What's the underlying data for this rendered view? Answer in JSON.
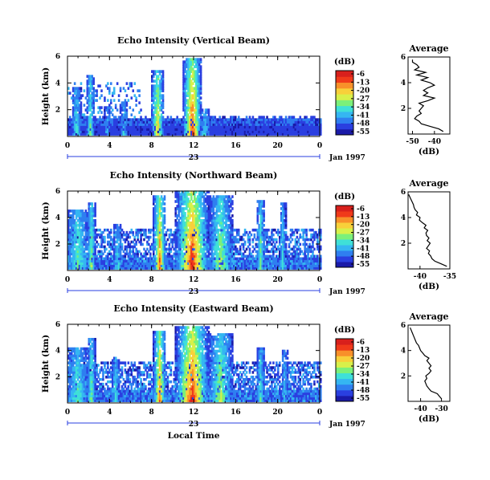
{
  "figure": {
    "x_axis_label": "Local Time",
    "date_label": "Jan 1997",
    "day_label": "23",
    "colorbar_unit": "(dB)",
    "avg_xlabel": "(dB)",
    "avg_title": "Average",
    "y_label": "Height (km)"
  },
  "colors": {
    "scale": [
      "#1a1aa8",
      "#2a3fe0",
      "#2f7ff0",
      "#35b6f2",
      "#3fe0d8",
      "#7bf07a",
      "#d8f04a",
      "#f8d03a",
      "#f8902a",
      "#f03a1a",
      "#d8201c"
    ]
  },
  "chart_data": [
    {
      "type": "heatmap",
      "title": "Echo Intensity (Vertical Beam)",
      "ylabel": "Height (km)",
      "xlabel": "",
      "x_ticks": [
        "0",
        "4",
        "8",
        "12",
        "16",
        "20",
        "0"
      ],
      "y_ticks": [
        "2",
        "4",
        "6"
      ],
      "xlim": [
        0,
        24
      ],
      "ylim": [
        0,
        6
      ],
      "colorbar_ticks": [
        "-6",
        "-13",
        "-20",
        "-27",
        "-34",
        "-41",
        "-48",
        "-55"
      ],
      "vmin": -55,
      "vmax": -6,
      "base_height_km": 1.2,
      "background_db": -48,
      "events": [
        {
          "t": 0.8,
          "w": 0.5,
          "top": 3.6,
          "peak": -34
        },
        {
          "t": 2.1,
          "w": 0.4,
          "top": 4.6,
          "peak": -30
        },
        {
          "t": 3.7,
          "w": 0.3,
          "top": 2.2,
          "peak": -38
        },
        {
          "t": 5.3,
          "w": 0.4,
          "top": 2.6,
          "peak": -36
        },
        {
          "t": 8.5,
          "w": 0.6,
          "top": 4.8,
          "peak": -20
        },
        {
          "t": 11.8,
          "w": 0.9,
          "top": 5.7,
          "peak": -10
        },
        {
          "t": 13.0,
          "w": 0.5,
          "top": 2.0,
          "peak": -34
        }
      ],
      "avg": {
        "title": "Average",
        "xlabel": "(dB)",
        "x_ticks": [
          "-50",
          "-40"
        ],
        "xlim": [
          -52,
          -33
        ],
        "ylim": [
          0,
          6
        ],
        "y_ticks": [
          "2",
          "4",
          "6"
        ],
        "heights": [
          0.2,
          0.4,
          0.6,
          0.8,
          1.0,
          1.2,
          1.4,
          1.6,
          1.8,
          2.0,
          2.2,
          2.4,
          2.6,
          2.8,
          3.0,
          3.2,
          3.4,
          3.6,
          3.8,
          4.0,
          4.2,
          4.4,
          4.6,
          4.8,
          5.0,
          5.2,
          5.4,
          5.6,
          5.8
        ],
        "values": [
          -36,
          -38,
          -42,
          -46,
          -47,
          -49,
          -48,
          -46,
          -47,
          -46,
          -45,
          -47,
          -43,
          -40,
          -45,
          -43,
          -45,
          -43,
          -40,
          -42,
          -46,
          -43,
          -48,
          -44,
          -49,
          -47,
          -48,
          -50,
          -50
        ]
      }
    },
    {
      "type": "heatmap",
      "title": "Echo Intensity (Northward Beam)",
      "ylabel": "Height (km)",
      "xlabel": "",
      "x_ticks": [
        "0",
        "4",
        "8",
        "12",
        "16",
        "20",
        "0"
      ],
      "y_ticks": [
        "2",
        "4",
        "6"
      ],
      "xlim": [
        0,
        24
      ],
      "ylim": [
        0,
        6
      ],
      "colorbar_ticks": [
        "-6",
        "-13",
        "-20",
        "-27",
        "-34",
        "-41",
        "-48",
        "-55"
      ],
      "vmin": -55,
      "vmax": -6,
      "base_height_km": 0.8,
      "background_db": -46,
      "events": [
        {
          "t": 0.9,
          "w": 1.2,
          "top": 4.6,
          "peak": -30
        },
        {
          "t": 2.2,
          "w": 0.4,
          "top": 5.0,
          "peak": -26
        },
        {
          "t": 4.7,
          "w": 0.4,
          "top": 3.4,
          "peak": -34
        },
        {
          "t": 8.7,
          "w": 0.6,
          "top": 5.6,
          "peak": -14
        },
        {
          "t": 11.8,
          "w": 1.6,
          "top": 5.9,
          "peak": -8
        },
        {
          "t": 14.5,
          "w": 1.2,
          "top": 5.6,
          "peak": -26
        },
        {
          "t": 18.3,
          "w": 0.4,
          "top": 5.2,
          "peak": -30
        },
        {
          "t": 20.4,
          "w": 0.3,
          "top": 5.0,
          "peak": -34
        }
      ],
      "avg": {
        "title": "Average",
        "xlabel": "(dB)",
        "x_ticks": [
          "-40",
          "-35"
        ],
        "xlim": [
          -42,
          -35
        ],
        "ylim": [
          0,
          6
        ],
        "y_ticks": [
          "2",
          "4",
          "6"
        ],
        "heights": [
          0.2,
          0.4,
          0.6,
          0.8,
          1.0,
          1.2,
          1.4,
          1.6,
          1.8,
          2.0,
          2.2,
          2.4,
          2.6,
          2.8,
          3.0,
          3.2,
          3.4,
          3.6,
          3.8,
          4.0,
          4.2,
          4.4,
          4.6,
          4.8,
          5.0,
          5.2,
          5.4,
          5.6,
          5.8
        ],
        "values": [
          -35.5,
          -36.5,
          -37.5,
          -38.0,
          -38.2,
          -38.6,
          -38.4,
          -38.9,
          -38.6,
          -38.3,
          -38.8,
          -38.5,
          -38.9,
          -39.0,
          -38.7,
          -39.3,
          -39.0,
          -39.6,
          -40.1,
          -40.0,
          -40.6,
          -40.4,
          -40.8,
          -41.0,
          -41.1,
          -41.3,
          -41.5,
          -41.7,
          -41.9
        ]
      }
    },
    {
      "type": "heatmap",
      "title": "Echo Intensity (Eastward Beam)",
      "ylabel": "Height (km)",
      "xlabel": "Local Time",
      "x_ticks": [
        "0",
        "4",
        "8",
        "12",
        "16",
        "20",
        "0"
      ],
      "y_ticks": [
        "2",
        "4",
        "6"
      ],
      "xlim": [
        0,
        24
      ],
      "ylim": [
        0,
        6
      ],
      "colorbar_ticks": [
        "-6",
        "-13",
        "-20",
        "-27",
        "-34",
        "-41",
        "-48",
        "-55"
      ],
      "vmin": -55,
      "vmax": -6,
      "base_height_km": 0.8,
      "background_db": -46,
      "events": [
        {
          "t": 0.9,
          "w": 1.2,
          "top": 4.2,
          "peak": -32
        },
        {
          "t": 2.2,
          "w": 0.4,
          "top": 4.8,
          "peak": -28
        },
        {
          "t": 4.5,
          "w": 0.4,
          "top": 3.4,
          "peak": -34
        },
        {
          "t": 8.7,
          "w": 0.6,
          "top": 5.4,
          "peak": -14
        },
        {
          "t": 11.8,
          "w": 1.6,
          "top": 5.7,
          "peak": -8
        },
        {
          "t": 14.5,
          "w": 1.2,
          "top": 5.2,
          "peak": -26
        },
        {
          "t": 18.3,
          "w": 0.4,
          "top": 4.2,
          "peak": -32
        },
        {
          "t": 20.6,
          "w": 0.3,
          "top": 4.0,
          "peak": -36
        }
      ],
      "avg": {
        "title": "Average",
        "xlabel": "(dB)",
        "x_ticks": [
          "-40",
          "-30"
        ],
        "xlim": [
          -46,
          -26
        ],
        "ylim": [
          0,
          6
        ],
        "y_ticks": [
          "2",
          "4",
          "6"
        ],
        "heights": [
          0.2,
          0.4,
          0.6,
          0.8,
          1.0,
          1.2,
          1.4,
          1.6,
          1.8,
          2.0,
          2.2,
          2.4,
          2.6,
          2.8,
          3.0,
          3.2,
          3.4,
          3.6,
          3.8,
          4.0,
          4.2,
          4.4,
          4.6,
          4.8,
          5.0,
          5.2,
          5.4,
          5.6,
          5.8
        ],
        "values": [
          -30,
          -31,
          -32,
          -35,
          -36,
          -37,
          -37.5,
          -38,
          -37,
          -37.5,
          -36,
          -35,
          -36,
          -35,
          -36,
          -37,
          -36,
          -38,
          -39,
          -40,
          -40.5,
          -41,
          -42,
          -42.5,
          -43,
          -43.5,
          -44,
          -44.5,
          -45
        ]
      }
    }
  ]
}
